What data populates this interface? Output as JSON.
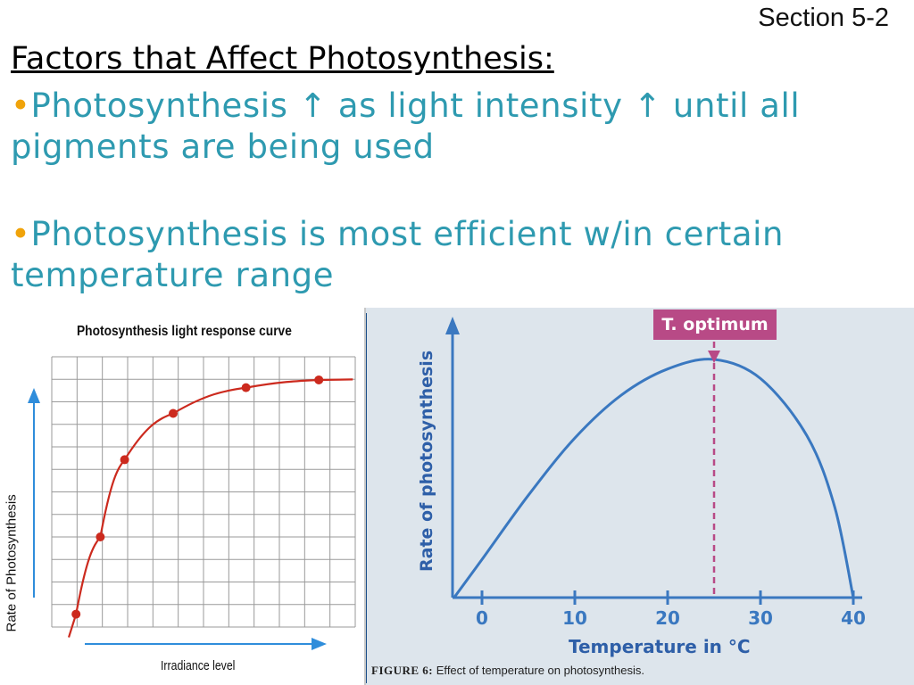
{
  "section_label": "Section 5-2",
  "title": "Factors that Affect Photosynthesis:",
  "bullets": [
    {
      "marker": "•",
      "text": "Photosynthesis ↑ as light intensity ↑ until all pigments are being used"
    },
    {
      "marker": "•",
      "text": "Photosynthesis is most efficient w/in certain temperature range"
    }
  ],
  "colors": {
    "bullet_text": "#2e9ab0",
    "bullet_marker": "#f0a30a",
    "light_curve": "#cc2a1e",
    "axis_arrow_left": "#2f8ddb",
    "temp_curve": "#3a78c0",
    "optimum_box": "#b84a86"
  },
  "chart_data": [
    {
      "type": "line",
      "title": "Photosynthesis light response curve",
      "xlabel": "Irradiance level",
      "ylabel": "Rate of Photosynthesis",
      "grid": true,
      "x": [
        1,
        2,
        3,
        5,
        8,
        11
      ],
      "y": [
        0.5,
        3.5,
        6.5,
        8.3,
        9.3,
        9.6
      ],
      "series": [
        {
          "values": [
            0.5,
            3.5,
            6.5,
            8.3,
            9.3,
            9.6
          ]
        }
      ],
      "xlim": [
        0,
        12.5
      ],
      "ylim": [
        0,
        10.5
      ]
    },
    {
      "type": "line",
      "xlabel": "Temperature in °C",
      "ylabel": "Rate of photosynthesis",
      "x_ticks": [
        "0",
        "10",
        "20",
        "30",
        "40"
      ],
      "xlim": [
        -3,
        42
      ],
      "ylim": [
        0,
        100
      ],
      "x": [
        -3,
        0,
        5,
        10,
        15,
        20,
        25,
        30,
        35,
        38,
        40
      ],
      "y": [
        0,
        16,
        43,
        67,
        85,
        96,
        100,
        92,
        68,
        38,
        0
      ],
      "annotation": {
        "label": "T. optimum",
        "x": 25
      },
      "caption_label": "FIGURE 6:",
      "caption_text": "Effect of temperature on photosynthesis."
    }
  ]
}
